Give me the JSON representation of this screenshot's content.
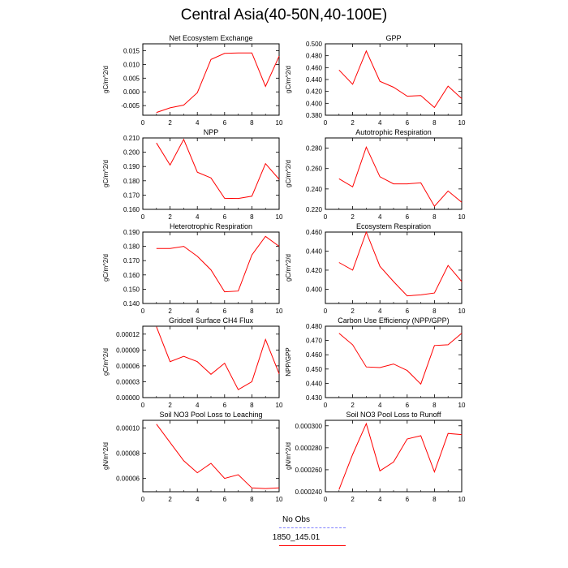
{
  "figure": {
    "title": "Central Asia(40-50N,40-100E)",
    "series_colors": {
      "obs": "#8080ff",
      "model": "#ff0000"
    }
  },
  "legend": [
    {
      "label": "No Obs",
      "color": "#8080ff",
      "style": "dashed"
    },
    {
      "label": "1850_145.01",
      "color": "#ff0000",
      "style": "solid"
    }
  ],
  "chart_data": [
    {
      "type": "line",
      "title": "Net Ecosystem Exchange",
      "ylabel": "gC/m^2/d",
      "xlabel": "",
      "xlim": [
        0,
        10
      ],
      "xticks": [
        "0",
        "2",
        "4",
        "6",
        "8",
        "10"
      ],
      "ylim": [
        -0.0085,
        0.0175
      ],
      "yticks": [
        "-0.005",
        "0.000",
        "0.005",
        "0.010",
        "0.015"
      ],
      "ytick_values": [
        -0.005,
        0,
        0.005,
        0.01,
        0.015
      ],
      "series": [
        {
          "name": "1850_145.01",
          "x": [
            1,
            2,
            3,
            4,
            5,
            6,
            7,
            8,
            9,
            10
          ],
          "values": [
            -0.0075,
            -0.0058,
            -0.0048,
            -0.0003,
            0.0118,
            0.014,
            0.0142,
            0.0142,
            0.002,
            0.013
          ]
        }
      ]
    },
    {
      "type": "line",
      "title": "GPP",
      "ylabel": "gC/m^2/d",
      "xlabel": "",
      "xlim": [
        0,
        10
      ],
      "xticks": [
        "0",
        "2",
        "4",
        "6",
        "8",
        "10"
      ],
      "ylim": [
        0.38,
        0.5
      ],
      "yticks": [
        "0.380",
        "0.400",
        "0.420",
        "0.440",
        "0.460",
        "0.480",
        "0.500"
      ],
      "ytick_values": [
        0.38,
        0.4,
        0.42,
        0.44,
        0.46,
        0.48,
        0.5
      ],
      "series": [
        {
          "name": "1850_145.01",
          "x": [
            1,
            2,
            3,
            4,
            5,
            6,
            7,
            8,
            9,
            10
          ],
          "values": [
            0.456,
            0.432,
            0.488,
            0.437,
            0.427,
            0.412,
            0.413,
            0.393,
            0.429,
            0.408
          ]
        }
      ]
    },
    {
      "type": "line",
      "title": "NPP",
      "ylabel": "gC/m^2/d",
      "xlabel": "",
      "xlim": [
        0,
        10
      ],
      "xticks": [
        "0",
        "2",
        "4",
        "6",
        "8",
        "10"
      ],
      "ylim": [
        0.16,
        0.21
      ],
      "yticks": [
        "0.160",
        "0.170",
        "0.180",
        "0.190",
        "0.200",
        "0.210"
      ],
      "ytick_values": [
        0.16,
        0.17,
        0.18,
        0.19,
        0.2,
        0.21
      ],
      "series": [
        {
          "name": "1850_145.01",
          "x": [
            1,
            2,
            3,
            4,
            5,
            6,
            7,
            8,
            9,
            10
          ],
          "values": [
            0.2065,
            0.191,
            0.209,
            0.186,
            0.182,
            0.1677,
            0.1676,
            0.1692,
            0.192,
            0.181
          ]
        }
      ]
    },
    {
      "type": "line",
      "title": "Autotrophic Respiration",
      "ylabel": "gC/m^2/d",
      "xlabel": "",
      "xlim": [
        0,
        10
      ],
      "xticks": [
        "0",
        "2",
        "4",
        "6",
        "8",
        "10"
      ],
      "ylim": [
        0.22,
        0.29
      ],
      "yticks": [
        "0.220",
        "0.240",
        "0.260",
        "0.280"
      ],
      "ytick_values": [
        0.22,
        0.24,
        0.26,
        0.28
      ],
      "series": [
        {
          "name": "1850_145.01",
          "x": [
            1,
            2,
            3,
            4,
            5,
            6,
            7,
            8,
            9,
            10
          ],
          "values": [
            0.25,
            0.242,
            0.281,
            0.252,
            0.245,
            0.245,
            0.246,
            0.223,
            0.238,
            0.227
          ]
        }
      ]
    },
    {
      "type": "line",
      "title": "Heterotrophic Respiration",
      "ylabel": "gC/m^2/d",
      "xlabel": "",
      "xlim": [
        0,
        10
      ],
      "xticks": [
        "0",
        "2",
        "4",
        "6",
        "8",
        "10"
      ],
      "ylim": [
        0.14,
        0.19
      ],
      "yticks": [
        "0.140",
        "0.150",
        "0.160",
        "0.170",
        "0.180",
        "0.190"
      ],
      "ytick_values": [
        0.14,
        0.15,
        0.16,
        0.17,
        0.18,
        0.19
      ],
      "series": [
        {
          "name": "1850_145.01",
          "x": [
            1,
            2,
            3,
            4,
            5,
            6,
            7,
            8,
            9,
            10
          ],
          "values": [
            0.1785,
            0.1785,
            0.18,
            0.173,
            0.1635,
            0.1482,
            0.1487,
            0.174,
            0.187,
            0.18
          ]
        }
      ]
    },
    {
      "type": "line",
      "title": "Ecosystem Respiration",
      "ylabel": "gC/m^2/d",
      "xlabel": "",
      "xlim": [
        0,
        10
      ],
      "xticks": [
        "0",
        "2",
        "4",
        "6",
        "8",
        "10"
      ],
      "ylim": [
        0.385,
        0.46
      ],
      "yticks": [
        "0.400",
        "0.420",
        "0.440",
        "0.460"
      ],
      "ytick_values": [
        0.4,
        0.42,
        0.44,
        0.46
      ],
      "series": [
        {
          "name": "1850_145.01",
          "x": [
            1,
            2,
            3,
            4,
            5,
            6,
            7,
            8,
            9,
            10
          ],
          "values": [
            0.428,
            0.42,
            0.46,
            0.424,
            0.408,
            0.393,
            0.394,
            0.396,
            0.425,
            0.408
          ]
        }
      ]
    },
    {
      "type": "line",
      "title": "Gridcell Surface CH4 Flux",
      "ylabel": "gC/m^2/d",
      "xlabel": "",
      "xlim": [
        0,
        10
      ],
      "xticks": [
        "0",
        "2",
        "4",
        "6",
        "8",
        "10"
      ],
      "ylim": [
        0.0,
        0.000135
      ],
      "yticks": [
        "0.00000",
        "0.00003",
        "0.00006",
        "0.00009",
        "0.00012"
      ],
      "ytick_values": [
        0,
        3e-05,
        6e-05,
        9e-05,
        0.00012
      ],
      "series": [
        {
          "name": "1850_145.01",
          "x": [
            1,
            2,
            3,
            4,
            5,
            6,
            7,
            8,
            9,
            10
          ],
          "values": [
            0.000134,
            6.8e-05,
            7.8e-05,
            6.8e-05,
            4.4e-05,
            6.5e-05,
            1.5e-05,
            3e-05,
            0.00011,
            4.5e-05
          ]
        }
      ]
    },
    {
      "type": "line",
      "title": "Carbon Use Efficiency (NPP/GPP)",
      "ylabel": "NPP/GPP",
      "xlabel": "",
      "xlim": [
        0,
        10
      ],
      "xticks": [
        "0",
        "2",
        "4",
        "6",
        "8",
        "10"
      ],
      "ylim": [
        0.43,
        0.48
      ],
      "yticks": [
        "0.430",
        "0.440",
        "0.450",
        "0.460",
        "0.470",
        "0.480"
      ],
      "ytick_values": [
        0.43,
        0.44,
        0.45,
        0.46,
        0.47,
        0.48
      ],
      "series": [
        {
          "name": "1850_145.01",
          "x": [
            1,
            2,
            3,
            4,
            5,
            6,
            7,
            8,
            9,
            10
          ],
          "values": [
            0.475,
            0.467,
            0.4515,
            0.451,
            0.4535,
            0.449,
            0.4395,
            0.4665,
            0.467,
            0.475
          ]
        }
      ]
    },
    {
      "type": "line",
      "title": "Soil NO3 Pool Loss to Leaching",
      "ylabel": "gN/m^2/d",
      "xlabel": "",
      "xlim": [
        0,
        10
      ],
      "xticks": [
        "0",
        "2",
        "4",
        "6",
        "8",
        "10"
      ],
      "ylim": [
        4.95e-05,
        0.000106
      ],
      "yticks": [
        "0.00006",
        "0.00008",
        "0.00010"
      ],
      "ytick_values": [
        6e-05,
        8e-05,
        0.0001
      ],
      "series": [
        {
          "name": "1850_145.01",
          "x": [
            1,
            2,
            3,
            4,
            5,
            6,
            7,
            8,
            9,
            10
          ],
          "values": [
            0.000103,
            8.85e-05,
            7.4e-05,
            6.45e-05,
            7.2e-05,
            6e-05,
            6.3e-05,
            5.25e-05,
            5.2e-05,
            5.25e-05
          ]
        }
      ]
    },
    {
      "type": "line",
      "title": "Soil NO3 Pool Loss to Runoff",
      "ylabel": "gN/m^2/d",
      "xlabel": "",
      "xlim": [
        0,
        10
      ],
      "xticks": [
        "0",
        "2",
        "4",
        "6",
        "8",
        "10"
      ],
      "ylim": [
        0.00024,
        0.000305
      ],
      "yticks": [
        "0.000240",
        "0.000260",
        "0.000280",
        "0.000300"
      ],
      "ytick_values": [
        0.00024,
        0.00026,
        0.00028,
        0.0003
      ],
      "series": [
        {
          "name": "1850_145.01",
          "x": [
            1,
            2,
            3,
            4,
            5,
            6,
            7,
            8,
            9,
            10
          ],
          "values": [
            0.000242,
            0.000274,
            0.000302,
            0.000259,
            0.000267,
            0.000288,
            0.000291,
            0.000258,
            0.000293,
            0.000292
          ]
        }
      ]
    }
  ]
}
